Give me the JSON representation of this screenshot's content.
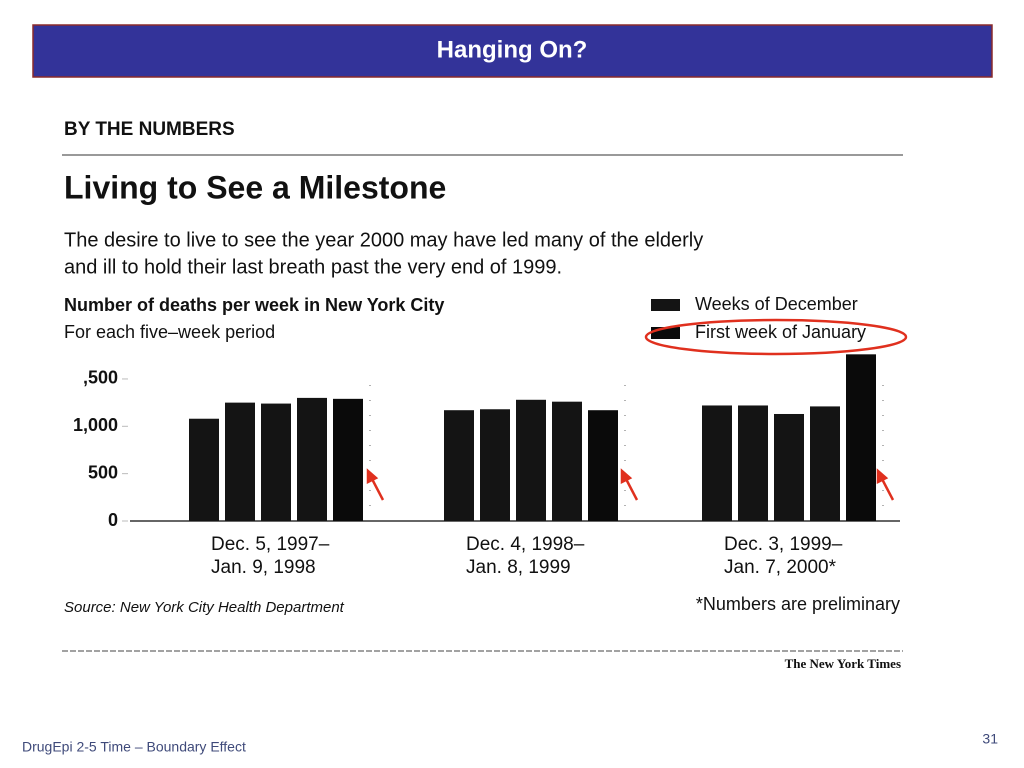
{
  "slide": {
    "title": "Hanging On?",
    "footer": "DrugEpi 2-5  Time – Boundary Effect",
    "page_number": "31"
  },
  "article": {
    "kicker": "BY THE NUMBERS",
    "headline": "Living to See a Milestone",
    "description": [
      "The desire to live to see the year 2000 may have led many of the elderly",
      "and ill to hold their last breath past the very end of 1999."
    ],
    "source": "Source: New York City Health Department",
    "note": "*Numbers are preliminary",
    "credit": "The New York Times"
  },
  "chart_data": {
    "type": "bar",
    "title": "Number of deaths per week in New York City",
    "subtitle": "For each five–week period",
    "categories": [
      [
        "Dec. 5, 1997–",
        "Jan. 9, 1998"
      ],
      [
        "Dec. 4, 1998–",
        "Jan. 8, 1999"
      ],
      [
        "Dec. 3, 1999–",
        "Jan. 7, 2000*"
      ]
    ],
    "series": [
      {
        "name": "Weeks of December",
        "color": "#141414",
        "values": [
          [
            1080,
            1250,
            1240,
            1300
          ],
          [
            1170,
            1180,
            1280,
            1260
          ],
          [
            1220,
            1220,
            1130,
            1210
          ]
        ]
      },
      {
        "name": "First week of January",
        "color": "#0a0a0a",
        "values": [
          1290,
          1170,
          1760
        ]
      }
    ],
    "ylim": [
      0,
      1800
    ],
    "yticks": [
      0,
      500,
      {
        "value": 1000,
        "label": "1,000"
      },
      {
        "value": 1500,
        "label": ",500"
      }
    ],
    "grid": false,
    "legend": "top-right"
  }
}
